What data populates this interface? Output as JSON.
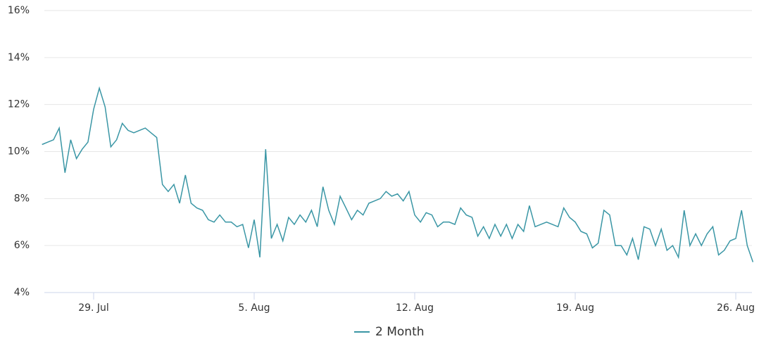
{
  "chart_data": {
    "type": "line",
    "categories": [
      null,
      null,
      null,
      null,
      null,
      null,
      null,
      null,
      null,
      "29. Jul",
      null,
      null,
      null,
      null,
      null,
      null,
      null,
      null,
      null,
      null,
      null,
      null,
      null,
      null,
      null,
      null,
      null,
      null,
      null,
      null,
      null,
      null,
      null,
      null,
      null,
      null,
      null,
      "5. Aug",
      null,
      null,
      null,
      null,
      null,
      null,
      null,
      null,
      null,
      null,
      null,
      null,
      null,
      null,
      null,
      null,
      null,
      null,
      null,
      null,
      null,
      null,
      null,
      null,
      null,
      null,
      null,
      "12. Aug",
      null,
      null,
      null,
      null,
      null,
      null,
      null,
      null,
      null,
      null,
      null,
      null,
      null,
      null,
      null,
      null,
      null,
      null,
      null,
      null,
      null,
      null,
      null,
      null,
      null,
      null,
      null,
      "19. Aug",
      null,
      null,
      null,
      null,
      null,
      null,
      null,
      null,
      null,
      null,
      null,
      null,
      null,
      null,
      null,
      null,
      null,
      null,
      null,
      null,
      null,
      null,
      null,
      null,
      null,
      null,
      null,
      "26. Aug",
      null,
      null,
      null
    ],
    "series": [
      {
        "name": "2 Month",
        "color": "#3a96a5",
        "values": [
          10.3,
          10.4,
          10.5,
          11.0,
          9.1,
          10.5,
          9.7,
          10.1,
          10.4,
          11.8,
          12.7,
          11.9,
          10.2,
          10.5,
          11.2,
          10.9,
          10.8,
          10.9,
          11.0,
          10.8,
          10.6,
          8.6,
          8.3,
          8.6,
          7.8,
          9.0,
          7.8,
          7.6,
          7.5,
          7.1,
          7.0,
          7.3,
          7.0,
          7.0,
          6.8,
          6.9,
          5.9,
          7.1,
          5.5,
          10.1,
          6.3,
          6.9,
          6.2,
          7.2,
          6.9,
          7.3,
          7.0,
          7.5,
          6.8,
          8.5,
          7.5,
          6.9,
          8.1,
          7.6,
          7.1,
          7.5,
          7.3,
          7.8,
          7.9,
          8.0,
          8.3,
          8.1,
          8.2,
          7.9,
          8.3,
          7.3,
          7.0,
          7.4,
          7.3,
          6.8,
          7.0,
          7.0,
          6.9,
          7.6,
          7.3,
          7.2,
          6.4,
          6.8,
          6.3,
          6.9,
          6.4,
          6.9,
          6.3,
          6.9,
          6.6,
          7.7,
          6.8,
          6.9,
          7.0,
          6.9,
          6.8,
          7.6,
          7.2,
          7.0,
          6.6,
          6.5,
          5.9,
          6.1,
          7.5,
          7.3,
          6.0,
          6.0,
          5.6,
          6.3,
          5.4,
          6.8,
          6.7,
          6.0,
          6.7,
          5.8,
          6.0,
          5.5,
          7.5,
          6.0,
          6.5,
          6.0,
          6.5,
          6.8,
          5.6,
          5.8,
          6.2,
          6.3,
          7.5,
          6.0,
          5.3
        ]
      }
    ],
    "ylim": [
      4,
      16
    ],
    "yticks": [
      {
        "value": 4,
        "label": "4%"
      },
      {
        "value": 6,
        "label": "6%"
      },
      {
        "value": 8,
        "label": "8%"
      },
      {
        "value": 10,
        "label": "10%"
      },
      {
        "value": 12,
        "label": "12%"
      },
      {
        "value": 14,
        "label": "14%"
      },
      {
        "value": 16,
        "label": "16%"
      }
    ],
    "grid": true
  }
}
